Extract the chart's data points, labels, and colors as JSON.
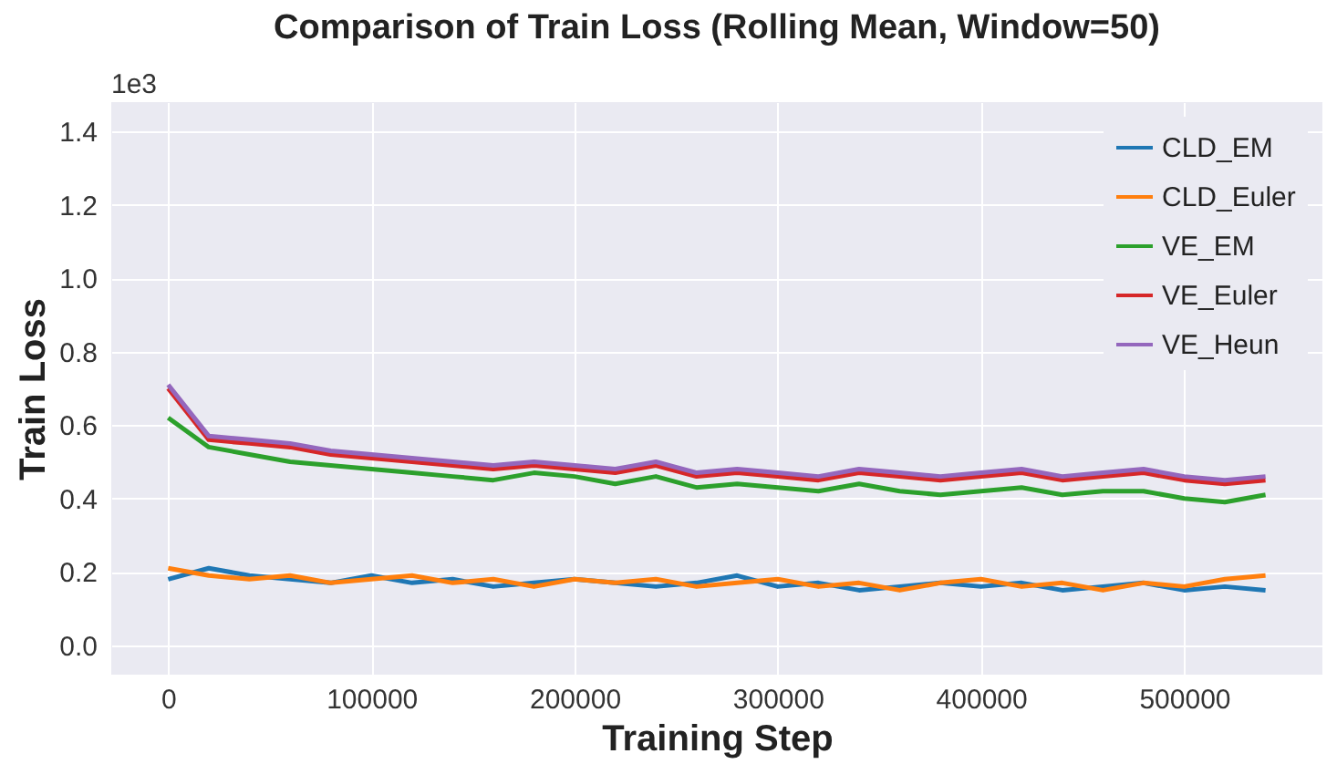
{
  "chart_data": {
    "type": "line",
    "title": "Comparison of Train Loss (Rolling Mean, Window=50)",
    "xlabel": "Training Step",
    "ylabel": "Train Loss",
    "annotations": [
      "1e3"
    ],
    "x": [
      0,
      20000,
      40000,
      60000,
      80000,
      100000,
      120000,
      140000,
      160000,
      180000,
      200000,
      220000,
      240000,
      260000,
      280000,
      300000,
      320000,
      340000,
      360000,
      380000,
      400000,
      420000,
      440000,
      460000,
      480000,
      500000,
      520000,
      540000
    ],
    "series": [
      {
        "name": "CLD_EM",
        "color": "#1f77b4",
        "values": [
          0.18,
          0.21,
          0.19,
          0.18,
          0.17,
          0.19,
          0.17,
          0.18,
          0.16,
          0.17,
          0.18,
          0.17,
          0.16,
          0.17,
          0.19,
          0.16,
          0.17,
          0.15,
          0.16,
          0.17,
          0.16,
          0.17,
          0.15,
          0.16,
          0.17,
          0.15,
          0.16,
          0.15
        ]
      },
      {
        "name": "CLD_Euler",
        "color": "#ff7f0e",
        "values": [
          0.21,
          0.19,
          0.18,
          0.19,
          0.17,
          0.18,
          0.19,
          0.17,
          0.18,
          0.16,
          0.18,
          0.17,
          0.18,
          0.16,
          0.17,
          0.18,
          0.16,
          0.17,
          0.15,
          0.17,
          0.18,
          0.16,
          0.17,
          0.15,
          0.17,
          0.16,
          0.18,
          0.19
        ]
      },
      {
        "name": "VE_EM",
        "color": "#2ca02c",
        "values": [
          0.62,
          0.54,
          0.52,
          0.5,
          0.49,
          0.48,
          0.47,
          0.46,
          0.45,
          0.47,
          0.46,
          0.44,
          0.46,
          0.43,
          0.44,
          0.43,
          0.42,
          0.44,
          0.42,
          0.41,
          0.42,
          0.43,
          0.41,
          0.42,
          0.42,
          0.4,
          0.39,
          0.41
        ]
      },
      {
        "name": "VE_Euler",
        "color": "#d62728",
        "values": [
          0.7,
          0.56,
          0.55,
          0.54,
          0.52,
          0.51,
          0.5,
          0.49,
          0.48,
          0.49,
          0.48,
          0.47,
          0.49,
          0.46,
          0.47,
          0.46,
          0.45,
          0.47,
          0.46,
          0.45,
          0.46,
          0.47,
          0.45,
          0.46,
          0.47,
          0.45,
          0.44,
          0.45
        ]
      },
      {
        "name": "VE_Heun",
        "color": "#9467bd",
        "values": [
          0.71,
          0.57,
          0.56,
          0.55,
          0.53,
          0.52,
          0.51,
          0.5,
          0.49,
          0.5,
          0.49,
          0.48,
          0.5,
          0.47,
          0.48,
          0.47,
          0.46,
          0.48,
          0.47,
          0.46,
          0.47,
          0.48,
          0.46,
          0.47,
          0.48,
          0.46,
          0.45,
          0.46
        ]
      }
    ],
    "xlim": [
      -28000,
      568000
    ],
    "ylim": [
      -0.08,
      1.48
    ],
    "xticks": [
      0,
      100000,
      200000,
      300000,
      400000,
      500000
    ],
    "yticks": [
      {
        "value": 0,
        "label": "0.0"
      },
      {
        "value": 0.2,
        "label": "0.2"
      },
      {
        "value": 0.4,
        "label": "0.4"
      },
      {
        "value": 0.6,
        "label": "0.6"
      },
      {
        "value": 0.8,
        "label": "0.8"
      },
      {
        "value": 1,
        "label": "1.0"
      },
      {
        "value": 1.2,
        "label": "1.2"
      },
      {
        "value": 1.4,
        "label": "1.4"
      }
    ],
    "grid": true,
    "legend": "top right",
    "marker": "none",
    "line_style": "solid"
  }
}
